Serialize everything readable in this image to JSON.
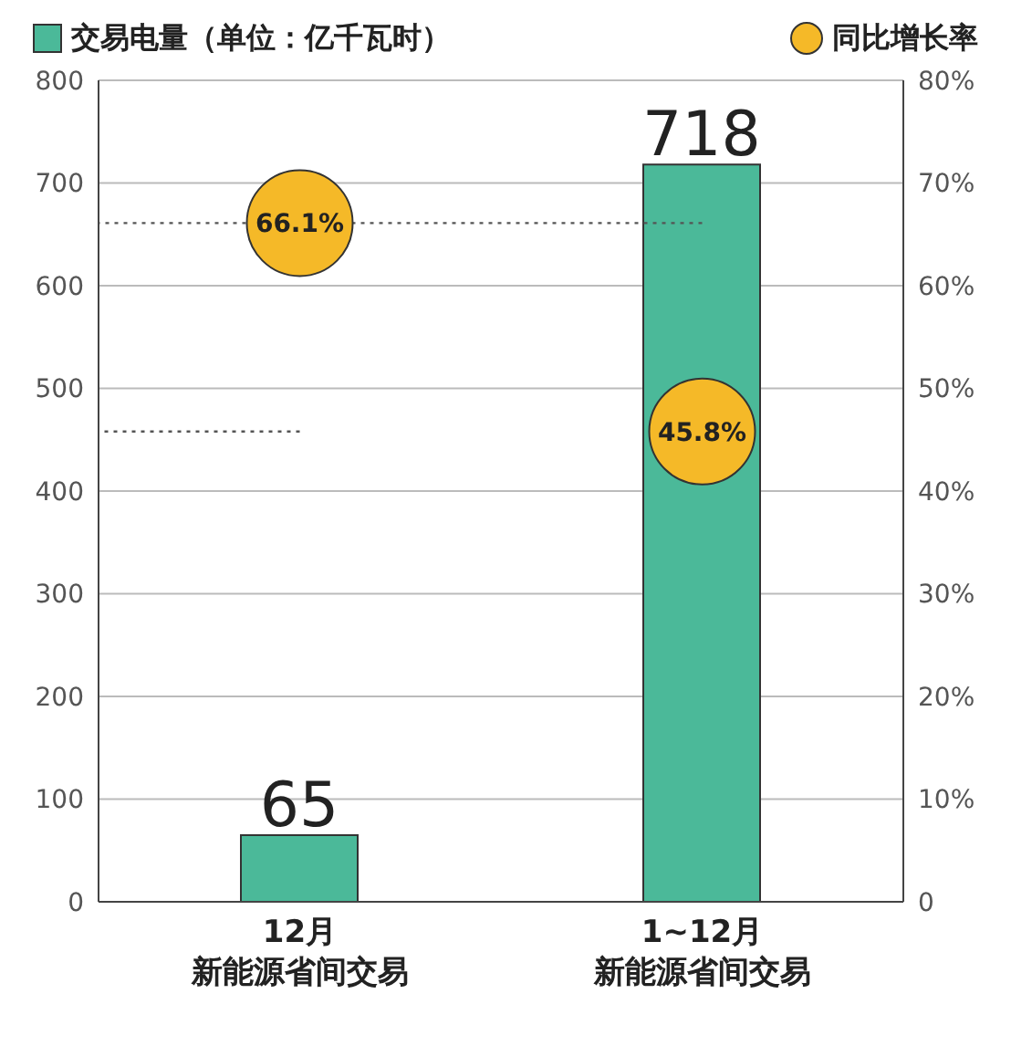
{
  "chart_data": {
    "type": "bar",
    "categories": [
      "12月新能源省间交易",
      "1~12月新能源省间交易"
    ],
    "series": [
      {
        "name": "交易电量（单位：亿千瓦时）",
        "color": "#4bb999",
        "values": [
          65,
          718
        ]
      },
      {
        "name": "同比增长率",
        "type": "scatter",
        "axis": "y2",
        "color": "#f5b928",
        "values": [
          66.1,
          45.8
        ],
        "value_labels": [
          "66.1%",
          "45.8%"
        ]
      }
    ],
    "ylim": [
      0,
      800
    ],
    "yticks": [
      0,
      100,
      200,
      300,
      400,
      500,
      600,
      700,
      800
    ],
    "y2lim": [
      0,
      80
    ],
    "y2ticks": [
      {
        "value": 0,
        "label": "0"
      },
      {
        "value": 10,
        "label": "10%"
      },
      {
        "value": 20,
        "label": "20%"
      },
      {
        "value": 30,
        "label": "30%"
      },
      {
        "value": 40,
        "label": "40%"
      },
      {
        "value": 50,
        "label": "50%"
      },
      {
        "value": 60,
        "label": "60%"
      },
      {
        "value": 70,
        "label": "70%"
      },
      {
        "value": 80,
        "label": "80%"
      }
    ],
    "ref_lines": [
      {
        "axis": "y2",
        "value": 66.1,
        "line_style": "dotted",
        "color": "#555555"
      },
      {
        "axis": "y2",
        "value": 45.8,
        "line_style": "dotted",
        "color": "#555555"
      }
    ],
    "grid": "y",
    "legend": "top",
    "marker": "circle",
    "data_labels": true
  }
}
